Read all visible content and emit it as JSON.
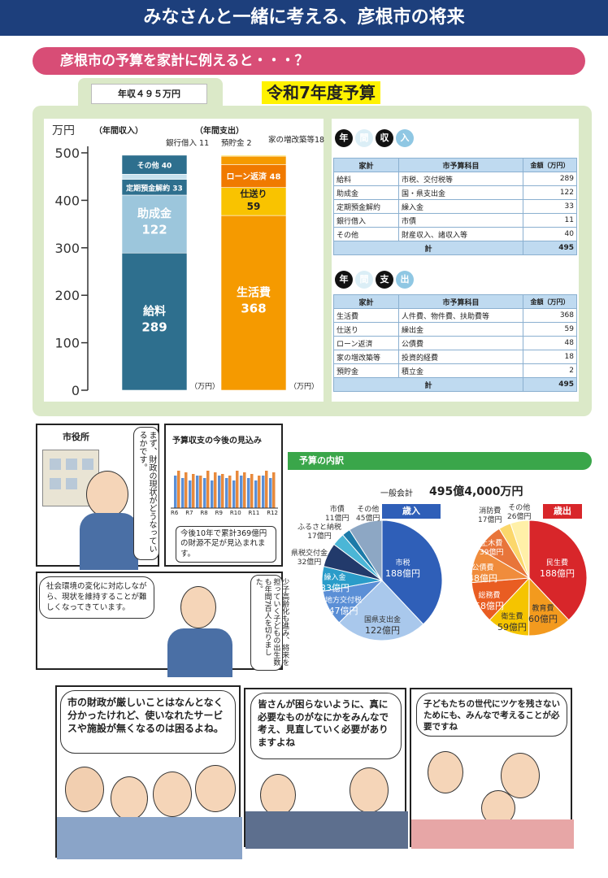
{
  "header": {
    "title": "みなさんと一緒に考える、彦根市の将来"
  },
  "section": {
    "title": "彦根市の予算を家計に例えると・・・？"
  },
  "budget": {
    "income_tag": "年収４９５万円",
    "year_title": "令和7年度予算",
    "unit_label": "万円",
    "income_header": "（年間収入）",
    "expense_header": "（年間支出）",
    "unit_suffix_income": "（万円）",
    "unit_suffix_expense": "（万円）",
    "ticks": [
      "500",
      "400",
      "300",
      "200",
      "100",
      "0"
    ]
  },
  "chart_data": {
    "type": "bar",
    "title": "",
    "ylabel": "万円",
    "ylim": [
      0,
      500
    ],
    "categories": [
      "年間収入",
      "年間支出"
    ],
    "stacks": [
      {
        "name": "年間収入",
        "segments": [
          {
            "label": "給料",
            "value": 289,
            "color": "#2e6f8e"
          },
          {
            "label": "助成金",
            "value": 122,
            "color": "#9cc6dc"
          },
          {
            "label": "定期預金解約",
            "value": 33,
            "color": "#2e6f8e"
          },
          {
            "label": "銀行借入",
            "value": 11,
            "color": "#c7e1ee"
          },
          {
            "label": "その他",
            "value": 40,
            "color": "#2e6f8e"
          }
        ]
      },
      {
        "name": "年間支出",
        "segments": [
          {
            "label": "生活費",
            "value": 368,
            "color": "#f59a00"
          },
          {
            "label": "仕送り",
            "value": 59,
            "color": "#f9c300"
          },
          {
            "label": "ローン返済",
            "value": 48,
            "color": "#f07a00"
          },
          {
            "label": "家の増改築等",
            "value": 18,
            "color": "#f59a00"
          },
          {
            "label": "預貯金",
            "value": 2,
            "color": "#fce14a"
          }
        ]
      }
    ]
  },
  "labels": {
    "income_salary": "給料",
    "income_salary_v": "289",
    "income_grant": "助成金",
    "income_grant_v": "122",
    "income_deposit": "定期預金解約 33",
    "income_other": "その他 40",
    "income_loan": "銀行借入 11",
    "exp_living": "生活費",
    "exp_living_v": "368",
    "exp_allow": "仕送り",
    "exp_allow_v": "59",
    "exp_loan": "ローン返済 48",
    "exp_savings": "預貯金 2",
    "exp_house": "家の増改築等18"
  },
  "income_table": {
    "badge": [
      "年",
      "間",
      "収",
      "入"
    ],
    "headers": [
      "家計",
      "市予算科目",
      "金額（万円）"
    ],
    "rows": [
      [
        "給料",
        "市税、交付税等",
        "289"
      ],
      [
        "助成金",
        "国・県支出金",
        "122"
      ],
      [
        "定期預金解約",
        "繰入金",
        "33"
      ],
      [
        "銀行借入",
        "市債",
        "11"
      ],
      [
        "その他",
        "財産収入、諸収入等",
        "40"
      ]
    ],
    "total_label": "計",
    "total": "495"
  },
  "expense_table": {
    "badge": [
      "年",
      "間",
      "支",
      "出"
    ],
    "headers": [
      "家計",
      "市予算科目",
      "金額（万円）"
    ],
    "rows": [
      [
        "生活費",
        "人件費、物件費、扶助費等",
        "368"
      ],
      [
        "仕送り",
        "繰出金",
        "59"
      ],
      [
        "ローン返済",
        "公債費",
        "48"
      ],
      [
        "家の増改築等",
        "投資的経費",
        "18"
      ],
      [
        "預貯金",
        "積立金",
        "2"
      ]
    ],
    "total_label": "計",
    "total": "495"
  },
  "manga": {
    "cityhall": "市役所",
    "mayor_speech": "まず、財政の現状がどうなっているかです。",
    "forecast_title": "予算収支の今後の見込み",
    "forecast_axis": [
      "R6",
      "R7",
      "R8",
      "R9",
      "R10",
      "R11",
      "R12"
    ],
    "forecast_note": "今後10年で累計369億円の財源不足が見込まれます。",
    "society_speech": "社会環境の変化に対応しながら、現状を維持することが難しくなってきています。",
    "population_speech": "少子高齢化も進み、将来を担っていく子どもの出生数も年間7百人を切りました。",
    "citizens_speech": "市の財政が厳しいことはなんとなく分かったけれど、使いなれたサービスや施設が無くなるのは困るよね。",
    "review_speech": "皆さんが困らないように、真に必要なものがなにかをみんなで考え、見直していく必要がありますよね",
    "future_speech": "子どもたちの世代にツケを残さないためにも、みんなで考えることが必要ですね"
  },
  "breakdown": {
    "title": "予算の内訳",
    "general_label": "一般会計",
    "general_total": "495億4,000万円",
    "revenue_title": "歳入",
    "expense_title": "歳出",
    "revenue": [
      {
        "name": "市税",
        "value": "188億円",
        "amount": 188,
        "color": "#2f5fb8"
      },
      {
        "name": "国県支出金",
        "value": "122億円",
        "amount": 122,
        "color": "#a9c8ec"
      },
      {
        "name": "地方交付税",
        "value": "47億円",
        "amount": 47,
        "color": "#5b8fd6"
      },
      {
        "name": "繰入金",
        "value": "33億円",
        "amount": 33,
        "color": "#2a9cc9"
      },
      {
        "name": "県税交付金",
        "value": "32億円",
        "amount": 32,
        "color": "#223a6b"
      },
      {
        "name": "ふるさと納税",
        "value": "17億円",
        "amount": 17,
        "color": "#4bb6d6"
      },
      {
        "name": "市債",
        "value": "11億円",
        "amount": 11,
        "color": "#1c7aa8"
      },
      {
        "name": "その他",
        "value": "45億円",
        "amount": 45,
        "color": "#8da7c4"
      }
    ],
    "expense": [
      {
        "name": "民生費",
        "value": "188億円",
        "amount": 188,
        "color": "#d8262a"
      },
      {
        "name": "教育費",
        "value": "60億円",
        "amount": 60,
        "color": "#f39a1e"
      },
      {
        "name": "衛生費",
        "value": "59億円",
        "amount": 59,
        "color": "#f5c400"
      },
      {
        "name": "総務費",
        "value": "58億円",
        "amount": 58,
        "color": "#e95d22"
      },
      {
        "name": "公債費",
        "value": "48億円",
        "amount": 48,
        "color": "#f08c3c"
      },
      {
        "name": "土木費",
        "value": "39億円",
        "amount": 39,
        "color": "#e8753a"
      },
      {
        "name": "消防費",
        "value": "17億円",
        "amount": 17,
        "color": "#fbd76b"
      },
      {
        "name": "その他",
        "value": "26億円",
        "amount": 26,
        "color": "#fff0a8"
      }
    ]
  }
}
